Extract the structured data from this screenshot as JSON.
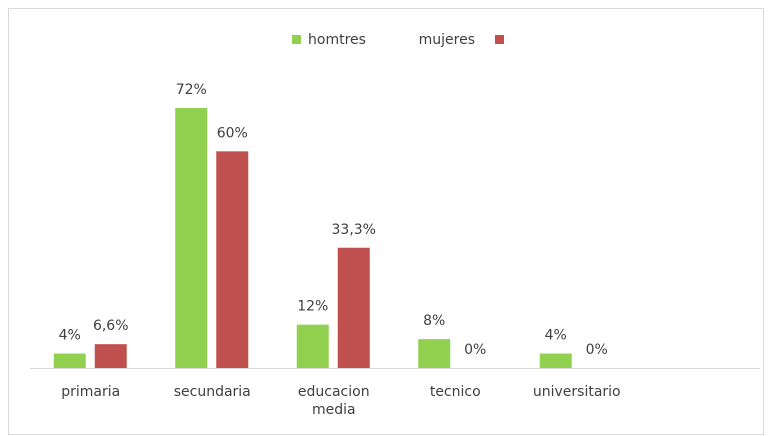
{
  "chart_data": {
    "type": "bar",
    "categories": [
      "primaria",
      "secundaria",
      "educacion media",
      "tecnico",
      "universitario"
    ],
    "series": [
      {
        "name": "homtres",
        "color": "#92d050",
        "values": [
          4,
          72,
          12,
          8,
          4
        ],
        "value_labels": [
          "4%",
          "72%",
          "12%",
          "8%",
          "4%"
        ]
      },
      {
        "name": "mujeres",
        "color": "#c0504d",
        "values": [
          6.6,
          60,
          33.3,
          0,
          0
        ],
        "value_labels": [
          "6,6%",
          "60%",
          "33,3%",
          "0%",
          "0%"
        ]
      }
    ]
  }
}
